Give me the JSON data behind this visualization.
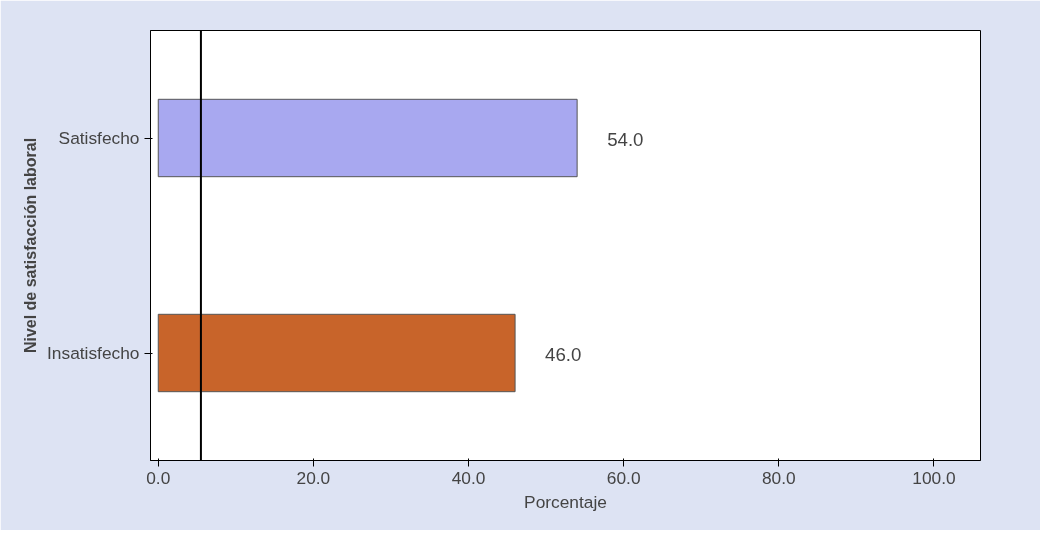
{
  "chart_data": {
    "type": "bar",
    "orientation": "horizontal",
    "categories": [
      "Satisfecho",
      "Insatisfecho"
    ],
    "colors": [
      "#a8a8f0",
      "#c8642a"
    ],
    "values": [
      54.0,
      46.0
    ],
    "value_labels": [
      "54.0",
      "46.0"
    ],
    "xlabel": "Porcentaje",
    "ylabel": "Nivel de satisfacción laboral",
    "xlim": [
      -1,
      106
    ],
    "xticks": [
      {
        "value": 0,
        "label": "0.0"
      },
      {
        "value": 20,
        "label": "20.0"
      },
      {
        "value": 40,
        "label": "40.0"
      },
      {
        "value": 60,
        "label": "60.0"
      },
      {
        "value": 80,
        "label": "80.0"
      },
      {
        "value": 100,
        "label": "100.0"
      }
    ],
    "ref_lines": [
      {
        "axis": "x",
        "value": 5.5,
        "color": "#000000"
      }
    ],
    "grid": false
  }
}
